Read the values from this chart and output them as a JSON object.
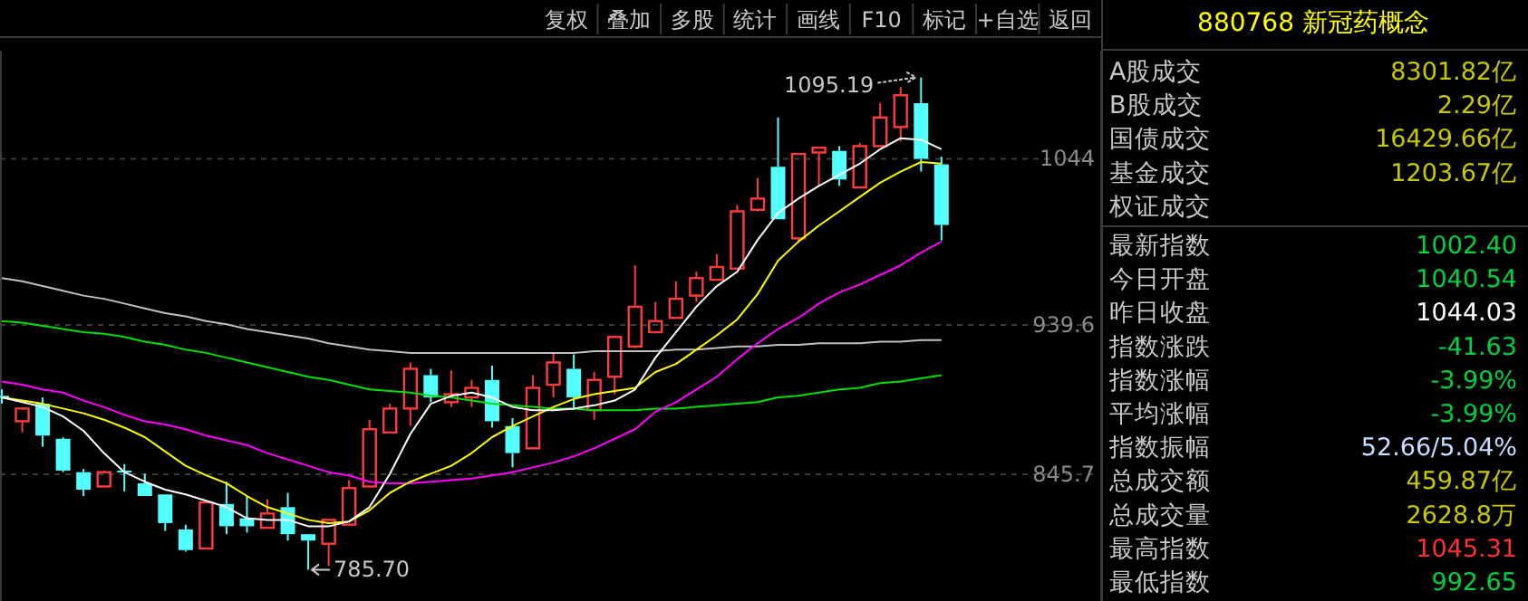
{
  "chart_data": [
    {
      "type": "candlestick",
      "categories": [
        null,
        null,
        null,
        null,
        null,
        null,
        null,
        null,
        null,
        null,
        null,
        null,
        null,
        null,
        null,
        null,
        null,
        null,
        null,
        null,
        null,
        null,
        null,
        null,
        null,
        null,
        null,
        null,
        null,
        null,
        null,
        null,
        null,
        null,
        null,
        null,
        null,
        null,
        null,
        null,
        null,
        null,
        null,
        null,
        null,
        null,
        null
      ],
      "ohlc": [
        [
          895,
          899,
          890,
          894
        ],
        [
          879,
          887,
          872,
          887
        ],
        [
          890,
          894,
          863,
          870
        ],
        [
          868,
          869,
          847,
          848
        ],
        [
          847,
          849,
          832,
          836
        ],
        [
          838,
          848,
          838,
          847
        ],
        [
          848,
          852,
          835,
          847
        ],
        [
          840,
          846,
          832,
          832
        ],
        [
          833,
          833,
          810,
          815
        ],
        [
          811,
          814,
          797,
          798
        ],
        [
          799,
          828,
          799,
          828
        ],
        [
          827,
          841,
          808,
          813
        ],
        [
          818,
          832,
          809,
          813
        ],
        [
          812,
          830,
          812,
          821
        ],
        [
          825,
          834,
          804,
          808
        ],
        [
          808,
          808,
          785.7,
          804
        ],
        [
          802,
          817,
          788,
          817
        ],
        [
          814,
          842,
          814,
          837
        ],
        [
          838,
          880,
          838,
          874
        ],
        [
          872,
          890,
          872,
          887
        ],
        [
          887,
          916,
          876,
          912
        ],
        [
          908,
          912,
          891,
          894
        ],
        [
          891,
          911,
          888,
          896
        ],
        [
          894,
          905,
          888,
          900
        ],
        [
          905,
          914,
          875,
          879
        ],
        [
          876,
          881,
          850,
          859
        ],
        [
          862,
          908,
          862,
          900
        ],
        [
          902,
          922,
          894,
          916
        ],
        [
          912,
          921,
          886,
          894
        ],
        [
          886,
          910,
          880,
          905
        ],
        [
          907,
          932,
          896,
          932
        ],
        [
          926,
          977,
          925,
          951
        ],
        [
          935,
          954,
          935,
          942
        ],
        [
          944,
          967,
          944,
          956
        ],
        [
          958,
          973,
          954,
          969
        ],
        [
          968,
          984,
          968,
          976
        ],
        [
          975,
          1015,
          975,
          1011
        ],
        [
          1012,
          1032,
          1011,
          1019
        ],
        [
          1039,
          1070,
          1006,
          1006
        ],
        [
          994,
          1047,
          991,
          1047
        ],
        [
          1048,
          1051,
          1027,
          1051
        ],
        [
          1049,
          1052,
          1027,
          1031
        ],
        [
          1026,
          1054,
          1026,
          1052
        ],
        [
          1052,
          1079,
          1052,
          1070
        ],
        [
          1064,
          1089,
          1055,
          1084
        ],
        [
          1079,
          1095.19,
          1036,
          1044.03
        ],
        [
          1040.54,
          1045.31,
          992.65,
          1002.4
        ]
      ],
      "series": [
        {
          "type": "line",
          "color": "#c0c0c0",
          "values": [
            969,
            967,
            964,
            961,
            958,
            956,
            953,
            950,
            947,
            945,
            942,
            940,
            937,
            935,
            933,
            931,
            928,
            926,
            924,
            923,
            922,
            922,
            922,
            922,
            922,
            922,
            922,
            922,
            922,
            923,
            923,
            923,
            923,
            924,
            924,
            925,
            926,
            926,
            927,
            927,
            928,
            928,
            928,
            929,
            929,
            930,
            930
          ]
        },
        {
          "type": "line",
          "color": "#00e000",
          "values": [
            942,
            941,
            939,
            937,
            935,
            934,
            932,
            929,
            927,
            924,
            922,
            919,
            916,
            913,
            910,
            907,
            905,
            902,
            899,
            898,
            897,
            895,
            894,
            892,
            890,
            889,
            888,
            887,
            887,
            886,
            886,
            886,
            887,
            887,
            888,
            889,
            890,
            891,
            894,
            895,
            897,
            899,
            900,
            903,
            904,
            906,
            908
          ]
        },
        {
          "type": "line",
          "color": "#ff00ff",
          "values": [
            904,
            902,
            899,
            897,
            892,
            888,
            883,
            879,
            877,
            874,
            870,
            867,
            864,
            859,
            855,
            851,
            847,
            845,
            841,
            840,
            840,
            841,
            842,
            843,
            845,
            847,
            850,
            853,
            857,
            862,
            868,
            874,
            885,
            891,
            899,
            907,
            918,
            928,
            937,
            944,
            953,
            960,
            965,
            971,
            977,
            985,
            992
          ]
        },
        {
          "type": "line",
          "color": "#ffff00",
          "values": [
            894,
            892,
            890,
            887,
            884,
            880,
            875,
            869,
            860,
            851,
            845,
            840,
            832,
            825,
            821,
            817,
            815,
            816,
            823,
            834,
            841,
            846,
            851,
            859,
            869,
            876,
            882,
            888,
            893,
            896,
            898,
            900,
            910,
            915,
            924,
            933,
            943,
            959,
            980,
            992,
            1002,
            1011,
            1020,
            1029,
            1036,
            1042,
            1041
          ]
        },
        {
          "type": "line",
          "color": "#ffffff",
          "values": [
            894,
            891,
            888,
            882,
            873,
            859,
            847,
            841,
            836,
            833,
            829,
            825,
            818,
            817,
            817,
            813,
            813,
            816,
            825,
            846,
            871,
            890,
            895,
            897,
            894,
            888,
            886,
            886,
            887,
            889,
            892,
            899,
            919,
            935,
            951,
            964,
            973,
            993,
            1010,
            1019,
            1027,
            1034,
            1041,
            1050,
            1057,
            1056,
            1050
          ]
        }
      ],
      "ylim": [
        766,
        1112
      ],
      "yticks": [
        845.7,
        939.6,
        1044
      ],
      "grid": "y",
      "tick_labels": "y",
      "annotations": [
        "复权",
        "叠加",
        "多股",
        "统计",
        "画线",
        "F10",
        "标记",
        "+自选",
        "返回",
        "1095.19",
        "785.70"
      ]
    },
    {
      "type": "other",
      "title": "880768 新冠药概念",
      "categories": [
        "A股成交",
        "B股成交",
        "国债成交",
        "基金成交",
        "权证成交",
        "最新指数",
        "今日开盘",
        "昨日收盘",
        "指数涨跌",
        "指数涨幅",
        "平均涨幅",
        "指数振幅",
        "总成交额",
        "总成交量",
        "最高指数",
        "最低指数"
      ],
      "value_labels": [
        "8301.82亿",
        "2.29亿",
        "16429.66亿",
        "1203.67亿",
        null,
        "1002.40",
        "1040.54",
        "1044.03",
        "-41.63",
        "-3.99%",
        "-3.99%",
        "52.66/5.04%",
        "459.87亿",
        "2628.8万",
        "1045.31",
        "992.65"
      ],
      "colors": [
        "#c8c800",
        "#c8c800",
        "#c8c800",
        "#c8c800",
        null,
        "#00d040",
        "#00d040",
        "#ffffff",
        "#00d040",
        "#00d040",
        "#00d040",
        "#c8dcff",
        "#c8c800",
        "#c8c800",
        "#ff3030",
        "#00d040"
      ]
    }
  ]
}
